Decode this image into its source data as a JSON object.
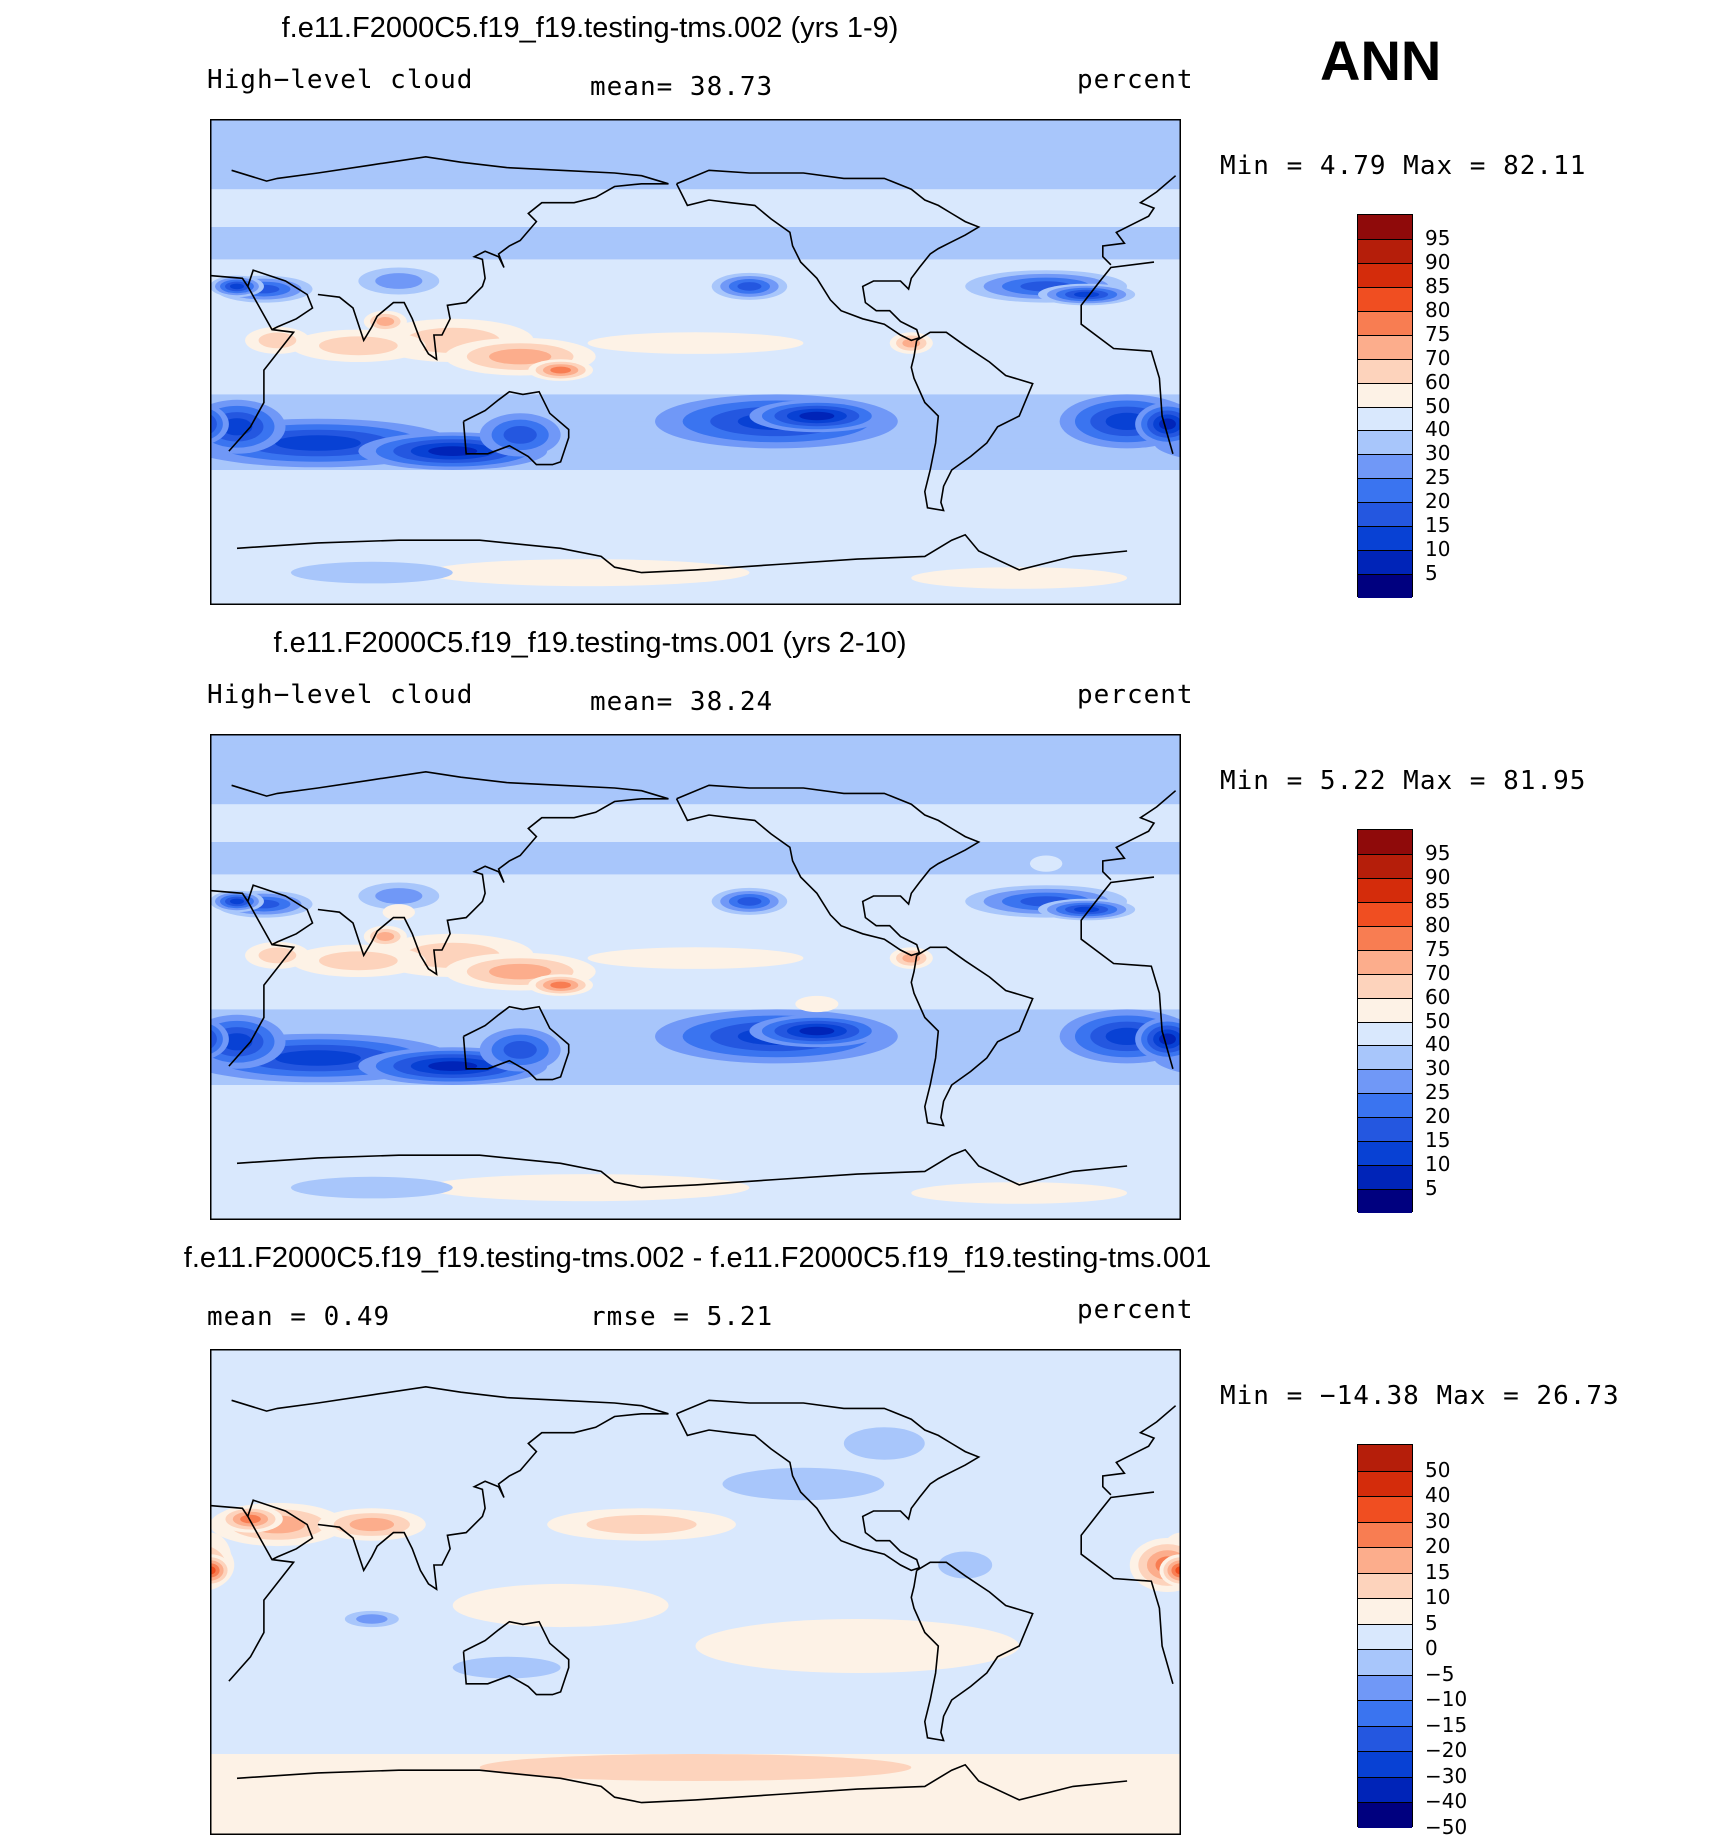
{
  "season": "ANN",
  "units_label": "percent",
  "colors": {
    "abs": [
      "#00007f",
      "#0024b8",
      "#0841d4",
      "#2457e0",
      "#3a74f0",
      "#7098f7",
      "#a8c6fb",
      "#d9e8fd",
      "#fdf2e6",
      "#fdd3bc",
      "#fcad8c",
      "#f87d52",
      "#f04e21",
      "#d42c0b",
      "#b51e0a",
      "#8f0a0a"
    ],
    "diff": [
      "#00007f",
      "#0024b8",
      "#0841d4",
      "#2457e0",
      "#3a74f0",
      "#7098f7",
      "#a8c6fb",
      "#d9e8fd",
      "#fdf2e6",
      "#fdd3bc",
      "#fcad8c",
      "#f87d52",
      "#f04e21",
      "#d42c0b",
      "#b51e0a"
    ]
  },
  "panels": [
    {
      "title": "f.e11.F2000C5.f19_f19.testing-tms.002 (yrs 1-9)",
      "left_label": "High−level cloud",
      "stat_text": "mean=   38.73",
      "right_label": "percent",
      "min_max_text": "Min =    4.79 Max =   82.11",
      "min": 4.79,
      "max": 82.11,
      "mean": 38.73,
      "scale": "abs",
      "levels": [
        "95",
        "90",
        "85",
        "80",
        "75",
        "70",
        "60",
        "50",
        "40",
        "30",
        "25",
        "20",
        "15",
        "10",
        "5"
      ]
    },
    {
      "title": "f.e11.F2000C5.f19_f19.testing-tms.001 (yrs 2-10)",
      "left_label": "High−level cloud",
      "stat_text": "mean=   38.24",
      "right_label": "percent",
      "min_max_text": "Min =    5.22 Max =   81.95",
      "min": 5.22,
      "max": 81.95,
      "mean": 38.24,
      "scale": "abs",
      "levels": [
        "95",
        "90",
        "85",
        "80",
        "75",
        "70",
        "60",
        "50",
        "40",
        "30",
        "25",
        "20",
        "15",
        "10",
        "5"
      ]
    },
    {
      "title": "f.e11.F2000C5.f19_f19.testing-tms.002 - f.e11.F2000C5.f19_f19.testing-tms.001",
      "left_label": "mean =    0.49",
      "stat_text": "rmse =    5.21",
      "right_label": "percent",
      "min_max_text": "Min = −14.38 Max =   26.73",
      "min": -14.38,
      "max": 26.73,
      "mean": 0.49,
      "rmse": 5.21,
      "scale": "diff",
      "levels": [
        "50",
        "40",
        "30",
        "20",
        "15",
        "10",
        "5",
        "0",
        "−5",
        "−10",
        "−15",
        "−20",
        "−30",
        "−40",
        "−50"
      ]
    }
  ],
  "chart_data": {
    "type": "heatmap",
    "variable": "High−level cloud",
    "units": "percent",
    "season": "ANN",
    "panels": [
      {
        "title": "f.e11.F2000C5.f19_f19.testing-tms.002 (yrs 1-9)",
        "mean": 38.73,
        "min": 4.79,
        "max": 82.11,
        "contour_levels": [
          5,
          10,
          15,
          20,
          25,
          30,
          40,
          50,
          60,
          70,
          75,
          80,
          85,
          90,
          95
        ]
      },
      {
        "title": "f.e11.F2000C5.f19_f19.testing-tms.001 (yrs 2-10)",
        "mean": 38.24,
        "min": 5.22,
        "max": 81.95,
        "contour_levels": [
          5,
          10,
          15,
          20,
          25,
          30,
          40,
          50,
          60,
          70,
          75,
          80,
          85,
          90,
          95
        ]
      },
      {
        "title": "f.e11.F2000C5.f19_f19.testing-tms.002 - f.e11.F2000C5.f19_f19.testing-tms.001",
        "mean": 0.49,
        "rmse": 5.21,
        "min": -14.38,
        "max": 26.73,
        "contour_levels": [
          -50,
          -40,
          -30,
          -20,
          -15,
          -10,
          -5,
          0,
          5,
          10,
          15,
          20,
          30,
          40,
          50
        ]
      }
    ]
  }
}
